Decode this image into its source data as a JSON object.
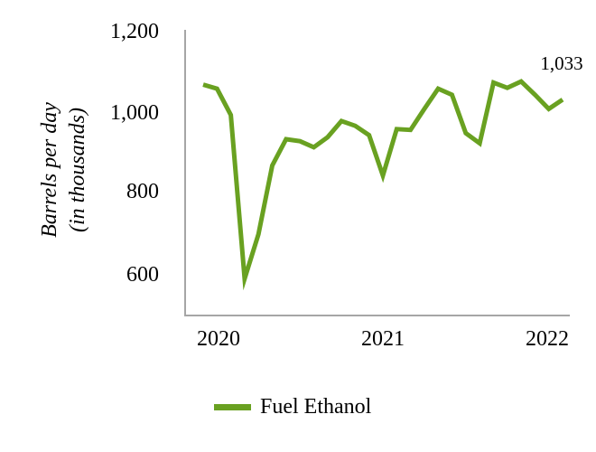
{
  "chart": {
    "y_axis_title_line1": "Barrels per day",
    "y_axis_title_line2": "(in thousands)",
    "y_tick_labels": [
      "1,200",
      "1,000",
      "800",
      "600"
    ],
    "x_tick_labels": [
      "2020",
      "2021",
      "2022"
    ],
    "end_point_label": "1,033",
    "legend_label": "Fuel Ethanol",
    "line_color": "#69A121",
    "axis_color": "#a6a6a6"
  },
  "chart_data": {
    "type": "line",
    "title": "",
    "xlabel": "",
    "ylabel": "Barrels per day (in thousands)",
    "ylim": [
      500,
      1200
    ],
    "y_ticks": [
      600,
      800,
      1000,
      1200
    ],
    "x_tick_labels": [
      "2020",
      "2021",
      "2022"
    ],
    "x_frequency": "monthly",
    "x": [
      "2020-01",
      "2020-02",
      "2020-03",
      "2020-04",
      "2020-05",
      "2020-06",
      "2020-07",
      "2020-08",
      "2020-09",
      "2020-10",
      "2020-11",
      "2020-12",
      "2021-01",
      "2021-02",
      "2021-03",
      "2021-04",
      "2021-05",
      "2021-06",
      "2021-07",
      "2021-08",
      "2021-09",
      "2021-10",
      "2021-11",
      "2021-12",
      "2022-01",
      "2022-02",
      "2022-03"
    ],
    "series": [
      {
        "name": "Fuel Ethanol",
        "color": "#69A121",
        "values": [
          1070,
          1060,
          995,
          590,
          700,
          870,
          935,
          930,
          915,
          940,
          980,
          968,
          945,
          845,
          960,
          958,
          1010,
          1060,
          1045,
          950,
          925,
          1075,
          1062,
          1078,
          1045,
          1010,
          1033
        ]
      }
    ],
    "end_label": {
      "point": "2022-03",
      "text": "1,033"
    },
    "grid": false,
    "legend_position": "bottom"
  }
}
